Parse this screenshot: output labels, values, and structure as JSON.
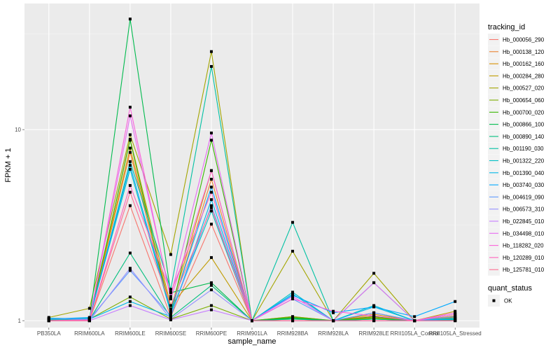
{
  "chart_data": {
    "type": "line",
    "title": "",
    "xlabel": "sample_name",
    "ylabel": "FPKM + 1",
    "yscale": "log10",
    "ylim": [
      0.92,
      45.7
    ],
    "yticks": [
      1,
      10
    ],
    "ytick_labels": [
      "1",
      "10"
    ],
    "grid": true,
    "legend_position": "right",
    "categories": [
      "PB350LA",
      "RRIM600LA",
      "RRIM600LE",
      "RRIM600SE",
      "RRIM600PE",
      "RRIM901LA",
      "RRIM928BA",
      "RRIM928LA",
      "RRIM928LE",
      "RRII105LA_Control",
      "RRII105LA_Stressed"
    ],
    "legend_title": "tracking_id",
    "shape_legend": {
      "title": "quant_status",
      "entries": [
        "OK"
      ]
    },
    "series": [
      {
        "name": "Hb_000056_290",
        "color": "#F8766D",
        "values": [
          1.0,
          1.0,
          4.0,
          1.05,
          3.2,
          1.0,
          1.0,
          1.0,
          1.06,
          1.0,
          1.03
        ]
      },
      {
        "name": "Hb_000138_120",
        "color": "#EA8331",
        "values": [
          1.01,
          1.02,
          7.6,
          1.1,
          5.5,
          1.0,
          1.05,
          1.0,
          1.1,
          1.0,
          1.06
        ]
      },
      {
        "name": "Hb_000162_160",
        "color": "#D89000",
        "values": [
          1.02,
          1.03,
          8.0,
          1.15,
          6.1,
          1.0,
          1.03,
          1.0,
          1.08,
          1.0,
          1.04
        ]
      },
      {
        "name": "Hb_000284_280",
        "color": "#C09B00",
        "values": [
          1.01,
          1.01,
          8.9,
          1.2,
          2.14,
          1.0,
          1.02,
          1.0,
          1.04,
          1.0,
          1.12
        ]
      },
      {
        "name": "Hb_000527_020",
        "color": "#A3A500",
        "values": [
          1.04,
          1.16,
          9.4,
          2.22,
          25.6,
          1.0,
          2.31,
          1.0,
          1.77,
          1.0,
          1.08
        ]
      },
      {
        "name": "Hb_000654_060",
        "color": "#7CAE00",
        "values": [
          1.01,
          1.02,
          1.33,
          1.02,
          1.2,
          1.0,
          1.05,
          1.0,
          1.03,
          1.0,
          1.05
        ]
      },
      {
        "name": "Hb_000700_020",
        "color": "#39B600",
        "values": [
          1.02,
          1.03,
          8.8,
          1.08,
          8.8,
          1.0,
          1.04,
          1.0,
          1.05,
          1.0,
          1.02
        ]
      },
      {
        "name": "Hb_000866_100",
        "color": "#00BB4E",
        "values": [
          1.03,
          1.02,
          37.9,
          1.4,
          1.58,
          1.0,
          1.03,
          1.0,
          1.02,
          1.0,
          1.01
        ]
      },
      {
        "name": "Hb_000890_140",
        "color": "#00BF7D",
        "values": [
          1.01,
          1.01,
          2.26,
          1.04,
          1.53,
          1.0,
          1.02,
          1.0,
          1.02,
          1.0,
          1.01
        ]
      },
      {
        "name": "Hb_001190_030",
        "color": "#00C1A3",
        "values": [
          1.02,
          1.02,
          6.8,
          1.46,
          21.4,
          1.0,
          3.27,
          1.0,
          1.58,
          1.0,
          1.02
        ]
      },
      {
        "name": "Hb_001322_220",
        "color": "#00BFC4",
        "values": [
          1.02,
          1.03,
          6.2,
          1.1,
          3.75,
          1.0,
          1.41,
          1.0,
          1.2,
          1.0,
          1.03
        ]
      },
      {
        "name": "Hb_001390_040",
        "color": "#00B8E7",
        "values": [
          1.03,
          1.02,
          1.26,
          1.05,
          4.3,
          1.0,
          1.38,
          1.0,
          1.18,
          1.0,
          1.02
        ]
      },
      {
        "name": "Hb_003740_030",
        "color": "#00A9FF",
        "values": [
          1.02,
          1.04,
          6.5,
          1.13,
          5.0,
          1.0,
          1.36,
          1.1,
          1.18,
          1.05,
          1.26
        ]
      },
      {
        "name": "Hb_004619_090",
        "color": "#619CFF",
        "values": [
          1.02,
          1.02,
          1.83,
          1.06,
          4.0,
          1.0,
          1.3,
          1.0,
          1.1,
          1.0,
          1.05
        ]
      },
      {
        "name": "Hb_006573_310",
        "color": "#9590FF",
        "values": [
          1.0,
          1.0,
          1.88,
          1.02,
          1.45,
          1.0,
          1.0,
          1.0,
          1.0,
          1.0,
          1.0
        ]
      },
      {
        "name": "Hb_022845_010",
        "color": "#C77CFF",
        "values": [
          1.0,
          1.0,
          1.2,
          1.01,
          1.14,
          1.0,
          1.0,
          1.0,
          1.0,
          1.0,
          1.0
        ]
      },
      {
        "name": "Hb_034498_010",
        "color": "#E76BF3",
        "values": [
          1.0,
          1.01,
          11.8,
          1.34,
          9.6,
          1.0,
          1.34,
          1.0,
          1.58,
          1.0,
          1.08
        ]
      },
      {
        "name": "Hb_118282_020",
        "color": "#FA62DB",
        "values": [
          1.0,
          1.01,
          13.1,
          1.3,
          6.1,
          1.0,
          1.3,
          1.12,
          1.06,
          1.0,
          1.1
        ]
      },
      {
        "name": "Hb_120289_010",
        "color": "#FF62BC",
        "values": [
          1.0,
          1.0,
          5.1,
          1.41,
          4.7,
          1.0,
          1.0,
          1.0,
          1.0,
          1.0,
          1.0
        ]
      },
      {
        "name": "Hb_125781_010",
        "color": "#FF6C91",
        "values": [
          1.0,
          1.0,
          4.7,
          1.2,
          3.9,
          1.0,
          1.0,
          1.0,
          1.0,
          1.0,
          1.0
        ]
      }
    ]
  }
}
